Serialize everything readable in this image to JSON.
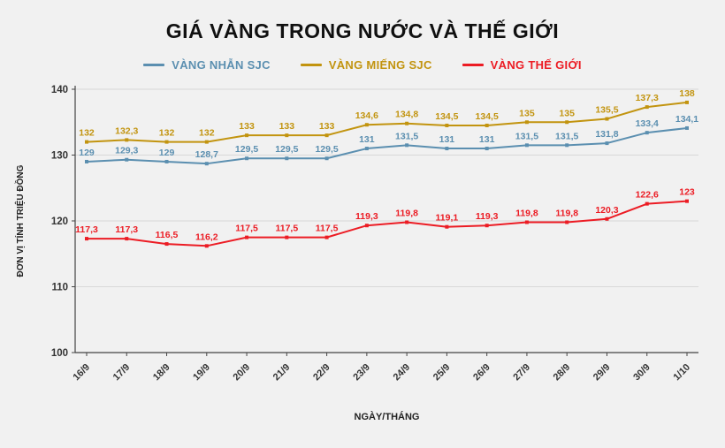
{
  "chart_data": {
    "type": "line",
    "title": "GIÁ VÀNG TRONG NƯỚC VÀ THẾ GIỚI",
    "xlabel": "NGÀY/THÁNG",
    "ylabel": "ĐƠN VỊ TÍNH TRIỆU ĐỒNG",
    "ylim": [
      100,
      140
    ],
    "yticks": [
      100,
      110,
      120,
      130,
      140
    ],
    "grid": true,
    "legend_position": "top",
    "categories": [
      "16/9",
      "17/9",
      "18/9",
      "19/9",
      "20/9",
      "21/9",
      "22/9",
      "23/9",
      "24/9",
      "25/9",
      "26/9",
      "27/9",
      "28/9",
      "29/9",
      "30/9",
      "1/10"
    ],
    "series": [
      {
        "name": "VÀNG NHẪN SJC",
        "color": "#5B8FB0",
        "values": [
          129,
          129.3,
          129,
          128.7,
          129.5,
          129.5,
          129.5,
          131,
          131.5,
          131,
          131,
          131.5,
          131.5,
          131.8,
          133.4,
          134.1
        ],
        "labels": [
          "129",
          "129,3",
          "129",
          "128,7",
          "129,5",
          "129,5",
          "129,5",
          "131",
          "131,5",
          "131",
          "131",
          "131,5",
          "131,5",
          "131,8",
          "133,4",
          "134,1"
        ]
      },
      {
        "name": "VÀNG MIẾNG SJC",
        "color": "#C2940F",
        "values": [
          132,
          132.3,
          132,
          132,
          133,
          133,
          133,
          134.6,
          134.8,
          134.5,
          134.5,
          135,
          135,
          135.5,
          137.3,
          138
        ],
        "labels": [
          "132",
          "132,3",
          "132",
          "132",
          "133",
          "133",
          "133",
          "134,6",
          "134,8",
          "134,5",
          "134,5",
          "135",
          "135",
          "135,5",
          "137,3",
          "138"
        ]
      },
      {
        "name": "VÀNG THẾ GIỚI",
        "color": "#EC1C24",
        "values": [
          117.3,
          117.3,
          116.5,
          116.2,
          117.5,
          117.5,
          117.5,
          119.3,
          119.8,
          119.1,
          119.3,
          119.8,
          119.8,
          120.3,
          122.6,
          123
        ],
        "labels": [
          "117,3",
          "117,3",
          "116,5",
          "116,2",
          "117,5",
          "117,5",
          "117,5",
          "119,3",
          "119,8",
          "119,1",
          "119,3",
          "119,8",
          "119,8",
          "120,3",
          "122,6",
          "123"
        ]
      }
    ],
    "colors": {
      "background": "#F1F1F1",
      "grid": "#D8D8D8",
      "axis": "#444444",
      "tick_text": "#333333"
    }
  }
}
